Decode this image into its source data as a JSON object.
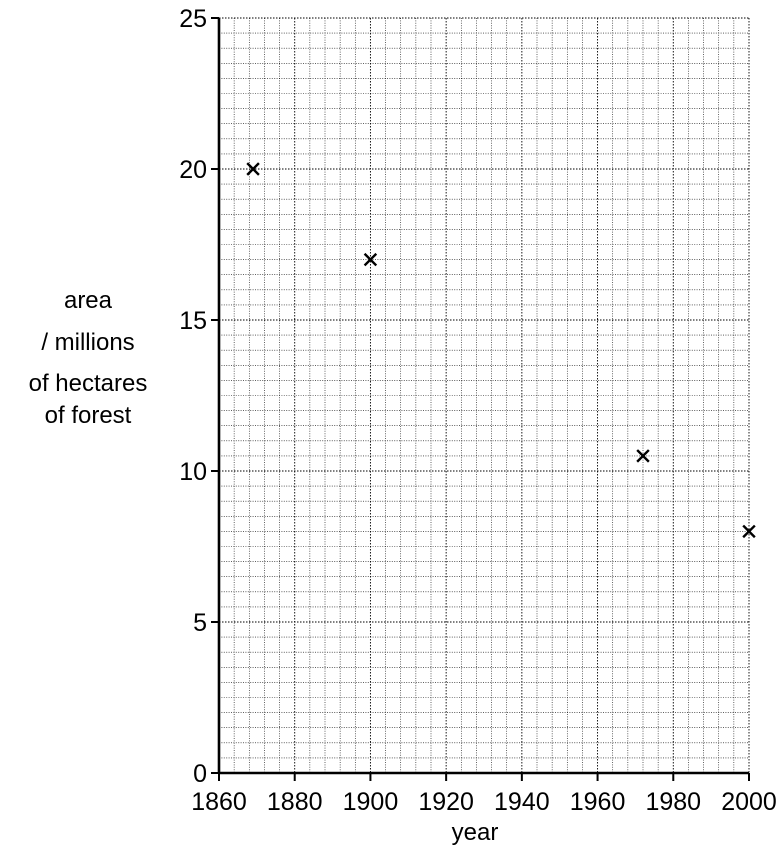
{
  "chart_data": {
    "type": "scatter",
    "title": "",
    "xlabel": "year",
    "ylabel_lines": [
      "area",
      "/ millions",
      "of hectares",
      "of forest"
    ],
    "xlim": [
      1860,
      2000
    ],
    "ylim": [
      0,
      25
    ],
    "xticks": [
      "1860",
      "1880",
      "1900",
      "1920",
      "1940",
      "1960",
      "1980",
      "2000"
    ],
    "yticks": [
      "0",
      "5",
      "10",
      "15",
      "20",
      "25"
    ],
    "grid": true,
    "marker": "x",
    "series": [
      {
        "points": [
          {
            "x": 1869,
            "y": 20
          },
          {
            "x": 1900,
            "y": 17
          },
          {
            "x": 1972,
            "y": 10.5
          },
          {
            "x": 2000,
            "y": 8
          }
        ]
      }
    ]
  }
}
